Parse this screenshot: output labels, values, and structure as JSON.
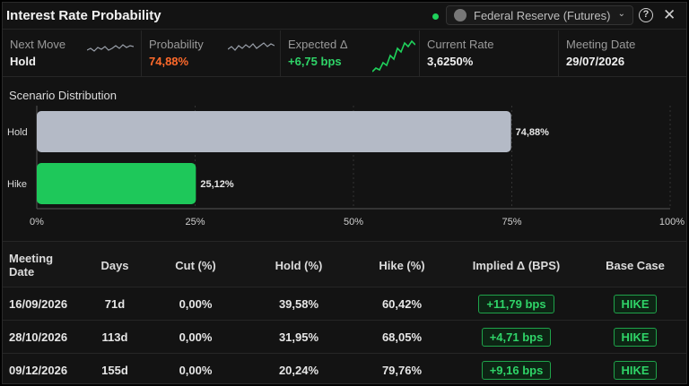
{
  "header": {
    "title": "Interest Rate Probability",
    "source": "Federal Reserve (Futures)"
  },
  "stats": [
    {
      "label": "Next Move",
      "value": "Hold",
      "color": "#f0f0f0",
      "spark_color": "#9aa0aa"
    },
    {
      "label": "Probability",
      "value": "74,88%",
      "color": "#ff6a2b",
      "spark_color": "#9aa0aa"
    },
    {
      "label": "Expected Δ",
      "value": "+6,75 bps",
      "color": "#2fd468",
      "spark_color": "#1fd15b"
    },
    {
      "label": "Current Rate",
      "value": "3,6250%",
      "color": "#f0f0f0"
    },
    {
      "label": "Meeting Date",
      "value": "29/07/2026",
      "color": "#f0f0f0"
    }
  ],
  "scenario": {
    "title": "Scenario Distribution"
  },
  "chart_data": {
    "type": "bar",
    "orientation": "horizontal",
    "categories": [
      "Hold",
      "Hike"
    ],
    "values": [
      74.88,
      25.12
    ],
    "value_labels": [
      "74,88%",
      "25,12%"
    ],
    "colors": [
      "#b4bac6",
      "#1ec85a"
    ],
    "xlim": [
      0,
      100
    ],
    "x_ticks": [
      0,
      25,
      50,
      75,
      100
    ],
    "x_tick_labels": [
      "0%",
      "25%",
      "50%",
      "75%",
      "100%"
    ],
    "grid": true
  },
  "table": {
    "headers": {
      "date": "Meeting Date",
      "days": "Days",
      "cut": "Cut (%)",
      "hold": "Hold (%)",
      "hike": "Hike (%)",
      "implied": "Implied Δ (BPS)",
      "base": "Base Case"
    },
    "rows": [
      {
        "date": "16/09/2026",
        "days": "71d",
        "cut": "0,00%",
        "hold": "39,58%",
        "hike": "60,42%",
        "implied": "+11,79 bps",
        "base": "HIKE"
      },
      {
        "date": "28/10/2026",
        "days": "113d",
        "cut": "0,00%",
        "hold": "31,95%",
        "hike": "68,05%",
        "implied": "+4,71 bps",
        "base": "HIKE"
      },
      {
        "date": "09/12/2026",
        "days": "155d",
        "cut": "0,00%",
        "hold": "20,24%",
        "hike": "79,76%",
        "implied": "+9,16 bps",
        "base": "HIKE"
      }
    ]
  }
}
